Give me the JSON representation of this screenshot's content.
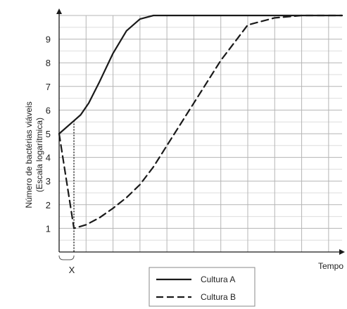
{
  "chart_data": {
    "type": "line",
    "ylabel_line1": "Número de bactérias viáveis",
    "ylabel_line2": "(Escala logarítmica)",
    "xlabel": "Tempo",
    "x_marker_label": "X",
    "ylim": [
      0,
      10
    ],
    "xlim": [
      0,
      10.5
    ],
    "yticks": [
      "1",
      "2",
      "3",
      "4",
      "5",
      "6",
      "7",
      "8",
      "9"
    ],
    "x_marker": 0.55,
    "grid": true,
    "legend_position": "bottom-center",
    "series": [
      {
        "name": "Cultura A",
        "style": "solid",
        "x": [
          0,
          0.55,
          0.8,
          1.1,
          1.5,
          2.0,
          2.5,
          3.0,
          3.5,
          4.0,
          6.0,
          8.0,
          10.5
        ],
        "y": [
          5.0,
          5.55,
          5.8,
          6.3,
          7.2,
          8.4,
          9.35,
          9.85,
          10.0,
          10.0,
          10.0,
          10.0,
          10.0
        ]
      },
      {
        "name": "Cultura B",
        "style": "dashed",
        "x": [
          0,
          0.55,
          1.0,
          1.5,
          2.0,
          2.5,
          3.0,
          3.5,
          4.0,
          5.0,
          6.0,
          7.0,
          8.0,
          9.0,
          10.5
        ],
        "y": [
          5.0,
          1.0,
          1.15,
          1.45,
          1.85,
          2.3,
          2.85,
          3.6,
          4.5,
          6.3,
          8.1,
          9.6,
          9.9,
          10.0,
          10.0
        ]
      }
    ]
  }
}
